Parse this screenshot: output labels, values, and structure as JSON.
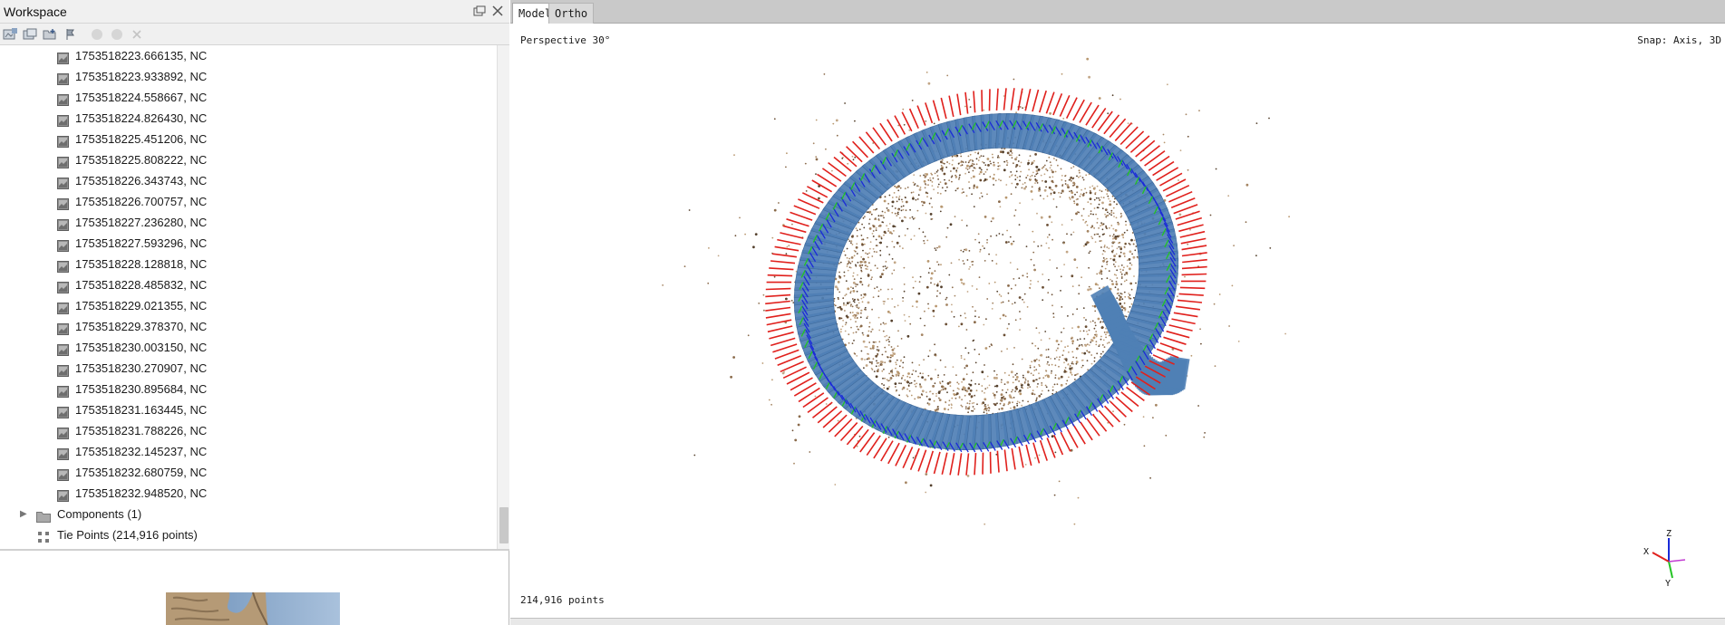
{
  "workspace": {
    "title": "Workspace",
    "cameras": [
      "1753518223.666135, NC",
      "1753518223.933892, NC",
      "1753518224.558667, NC",
      "1753518224.826430, NC",
      "1753518225.451206, NC",
      "1753518225.808222, NC",
      "1753518226.343743, NC",
      "1753518226.700757, NC",
      "1753518227.236280, NC",
      "1753518227.593296, NC",
      "1753518228.128818, NC",
      "1753518228.485832, NC",
      "1753518229.021355, NC",
      "1753518229.378370, NC",
      "1753518230.003150, NC",
      "1753518230.270907, NC",
      "1753518230.895684, NC",
      "1753518231.163445, NC",
      "1753518231.788226, NC",
      "1753518232.145237, NC",
      "1753518232.680759, NC",
      "1753518232.948520, NC"
    ],
    "components_label": "Components (1)",
    "tie_points_label": "Tie Points (214,916 points)"
  },
  "tabs": [
    {
      "label": "Model"
    },
    {
      "label": "Ortho"
    }
  ],
  "viewport": {
    "projection_label": "Perspective 30°",
    "snap_label": "Snap: Axis, 3D",
    "points_label": "214,916 points",
    "axis_labels": {
      "x": "X",
      "y": "Y",
      "z": "Z"
    }
  },
  "colors": {
    "surface_blue": "#4f7fb5",
    "camera_red": "#e0201c",
    "camera_green": "#23c423",
    "camera_blue": "#1a2ad8",
    "point_brown": "#8a6a4a"
  }
}
